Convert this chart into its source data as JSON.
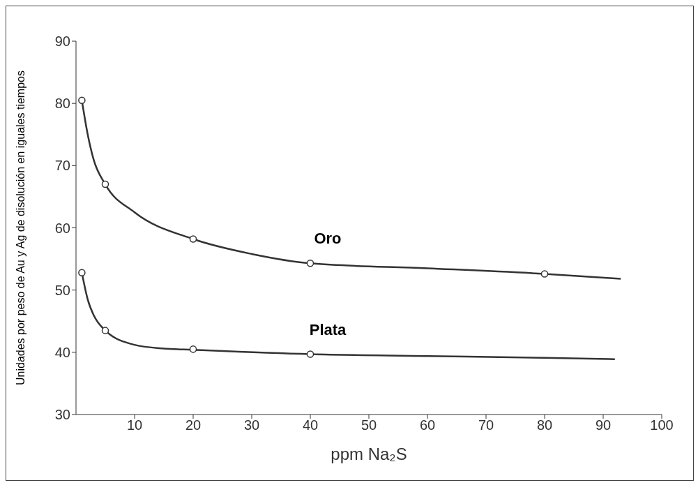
{
  "chart_data": {
    "type": "line",
    "xlabel": "ppm Na₂S",
    "ylabel": "Unidades por peso de Au y Ag de disolución  en iguales tiempos",
    "series": [
      {
        "name": "Oro",
        "color": "#333333",
        "marker": "none",
        "x": [
          1,
          2,
          3,
          5,
          10,
          20,
          30,
          40,
          60,
          80,
          93
        ],
        "values": [
          80.5,
          75,
          71,
          67,
          62.5,
          58.2,
          55.8,
          54.3,
          53.5,
          52.6,
          51.8
        ]
      },
      {
        "type": "scatter",
        "color": "#333333",
        "marker": "circle",
        "x": [
          1,
          5,
          20,
          40,
          80
        ],
        "values": [
          80.5,
          67,
          58.2,
          54.3,
          52.6
        ]
      },
      {
        "name": "Plata",
        "color": "#333333",
        "marker": "none",
        "x": [
          1,
          2,
          3,
          5,
          10,
          15,
          20,
          40,
          60,
          80,
          92
        ],
        "values": [
          52.8,
          48.5,
          46,
          43.5,
          41.2,
          40.6,
          40.4,
          39.7,
          39.4,
          39.1,
          38.9
        ]
      },
      {
        "type": "scatter",
        "color": "#333333",
        "marker": "circle",
        "x": [
          1,
          5,
          20,
          40
        ],
        "values": [
          52.8,
          43.5,
          40.5,
          39.7
        ]
      }
    ],
    "xlim": [
      0,
      100
    ],
    "xticks": [
      10,
      20,
      30,
      40,
      50,
      60,
      70,
      80,
      90,
      100
    ],
    "ylim": [
      30,
      90
    ],
    "yticks": [
      30,
      40,
      50,
      60,
      70,
      80,
      90
    ],
    "grid": false,
    "legend": false
  }
}
